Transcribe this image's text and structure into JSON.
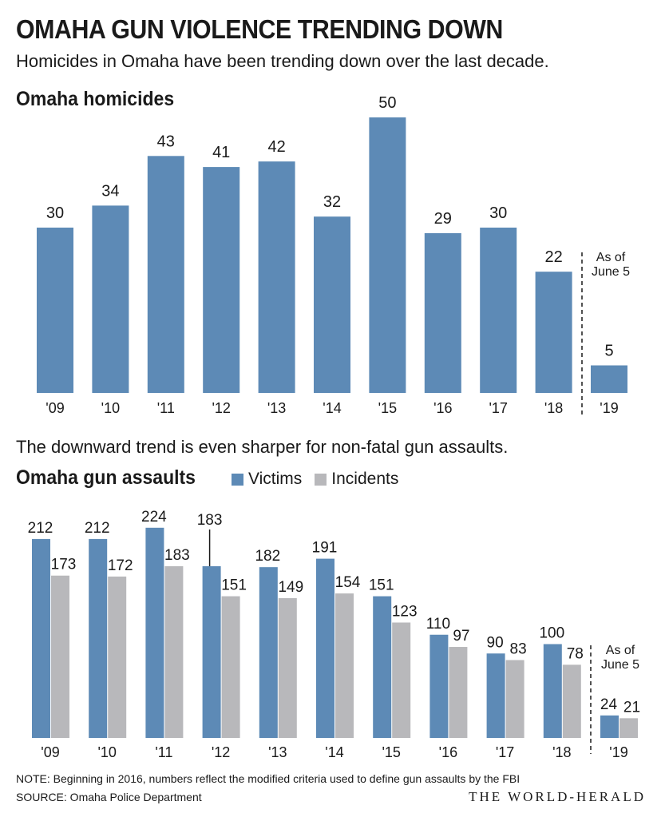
{
  "header": {
    "title": "OMAHA GUN VIOLENCE TRENDING DOWN",
    "subtitle": "Homicides in Omaha have been trending down over the last decade."
  },
  "homicides": {
    "section_title": "Omaha homicides"
  },
  "assaults": {
    "intro": "The downward trend is even sharper for non-fatal gun assaults.",
    "section_title": "Omaha gun assaults",
    "legend_victims": "Victims",
    "legend_incidents": "Incidents"
  },
  "footer": {
    "note": "NOTE: Beginning in 2016, numbers reflect the modified criteria used to define gun assaults by the FBI",
    "source": "SOURCE: Omaha Police Department",
    "brand": "THE WORLD-HERALD"
  },
  "colors": {
    "victims": "#5d8ab6",
    "incidents": "#b8b8bb",
    "text": "#1a1a1a"
  },
  "chart_data": [
    {
      "type": "bar",
      "title": "Omaha homicides",
      "categories": [
        "'09",
        "'10",
        "'11",
        "'12",
        "'13",
        "'14",
        "'15",
        "'16",
        "'17",
        "'18",
        "'19"
      ],
      "values": [
        30,
        34,
        43,
        41,
        42,
        32,
        50,
        29,
        30,
        22,
        5
      ],
      "annotation": {
        "category": "'19",
        "text_line1": "As of",
        "text_line2": "June 5"
      },
      "ylim": [
        0,
        50
      ],
      "xlabel": "",
      "ylabel": ""
    },
    {
      "type": "bar",
      "title": "Omaha gun assaults",
      "categories": [
        "'09",
        "'10",
        "'11",
        "'12",
        "'13",
        "'14",
        "'15",
        "'16",
        "'17",
        "'18",
        "'19"
      ],
      "series": [
        {
          "name": "Victims",
          "values": [
            212,
            212,
            224,
            183,
            182,
            191,
            151,
            110,
            90,
            100,
            24
          ]
        },
        {
          "name": "Incidents",
          "values": [
            173,
            172,
            183,
            151,
            149,
            154,
            123,
            97,
            83,
            78,
            21
          ]
        }
      ],
      "annotation": {
        "category": "'19",
        "text_line1": "As of",
        "text_line2": "June 5"
      },
      "ylim": [
        0,
        224
      ],
      "xlabel": "",
      "ylabel": ""
    }
  ]
}
